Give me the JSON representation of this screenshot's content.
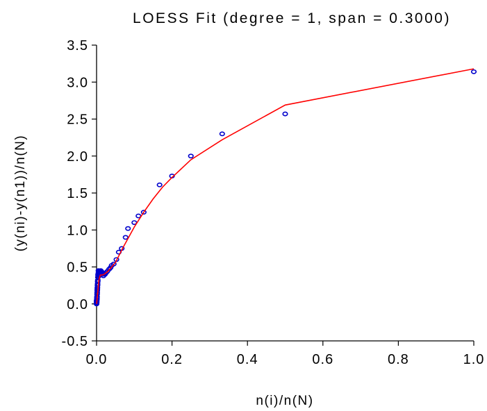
{
  "chart_data": {
    "type": "scatter",
    "title": "LOESS Fit (degree = 1, span = 0.3000)",
    "xlabel": "n(i)/n(N)",
    "ylabel": "(y(ni)-y(n1))/n(N)",
    "xlim": [
      0.0,
      1.0
    ],
    "ylim": [
      -0.5,
      3.5
    ],
    "x_ticks": [
      "0.0",
      "0.2",
      "0.4",
      "0.6",
      "0.8",
      "1.0"
    ],
    "y_ticks": [
      "-0.5",
      "0.0",
      "0.5",
      "1.0",
      "1.5",
      "2.0",
      "2.5",
      "3.0",
      "3.5"
    ],
    "grid": false,
    "colors": {
      "points": "#0000cc",
      "fit_line": "#ff0000",
      "axes": "#000000"
    },
    "series": [
      {
        "type": "scatter",
        "x": [
          1.0,
          0.5,
          0.333,
          0.25,
          0.2,
          0.167,
          0.125,
          0.111,
          0.1,
          0.0833,
          0.0769,
          0.0667,
          0.0588,
          0.0526,
          0.0455,
          0.04,
          0.037,
          0.0333,
          0.0286,
          0.025,
          0.0222,
          0.02,
          0.0182,
          0.0167,
          0.0154,
          0.0143,
          0.0133,
          0.0125,
          0.0118,
          0.0111,
          0.0105,
          0.01,
          0.0091,
          0.0083,
          0.0077,
          0.0071,
          0.0067,
          0.0063,
          0.0059,
          0.0056,
          0.0053,
          0.005,
          0.0045,
          0.004,
          0.0036,
          0.0033,
          0.003,
          0.0027,
          0.0025,
          0.0022,
          0.002,
          0.0018,
          0.0016,
          0.0014,
          0.0012,
          0.001,
          0.0008,
          0.0006,
          0.0004,
          0.0002,
          0.0,
          0.0,
          0.0,
          0.0
        ],
        "y": [
          3.14,
          2.57,
          2.3,
          2.0,
          1.73,
          1.61,
          1.24,
          1.19,
          1.1,
          1.02,
          0.9,
          0.75,
          0.7,
          0.6,
          0.54,
          0.52,
          0.49,
          0.47,
          0.44,
          0.42,
          0.4,
          0.41,
          0.38,
          0.4,
          0.41,
          0.43,
          0.42,
          0.44,
          0.41,
          0.45,
          0.43,
          0.4,
          0.42,
          0.43,
          0.42,
          0.44,
          0.41,
          0.38,
          0.4,
          0.42,
          0.43,
          0.45,
          0.41,
          0.39,
          0.36,
          0.32,
          0.3,
          0.27,
          0.25,
          0.22,
          0.2,
          0.18,
          0.15,
          0.13,
          0.1,
          0.08,
          0.06,
          0.05,
          0.03,
          0.02,
          0.0,
          0.01,
          0.02,
          0.04
        ]
      },
      {
        "type": "line",
        "x": [
          0.0,
          0.002,
          0.004,
          0.006,
          0.008,
          0.01,
          0.015,
          0.02,
          0.03,
          0.05,
          0.07,
          0.1,
          0.125,
          0.15,
          0.175,
          0.2,
          0.25,
          0.333,
          0.5,
          1.0
        ],
        "y": [
          0.0,
          0.1,
          0.2,
          0.32,
          0.36,
          0.39,
          0.39,
          0.4,
          0.44,
          0.56,
          0.76,
          1.04,
          1.24,
          1.42,
          1.58,
          1.71,
          1.95,
          2.22,
          2.69,
          3.18
        ]
      }
    ]
  }
}
